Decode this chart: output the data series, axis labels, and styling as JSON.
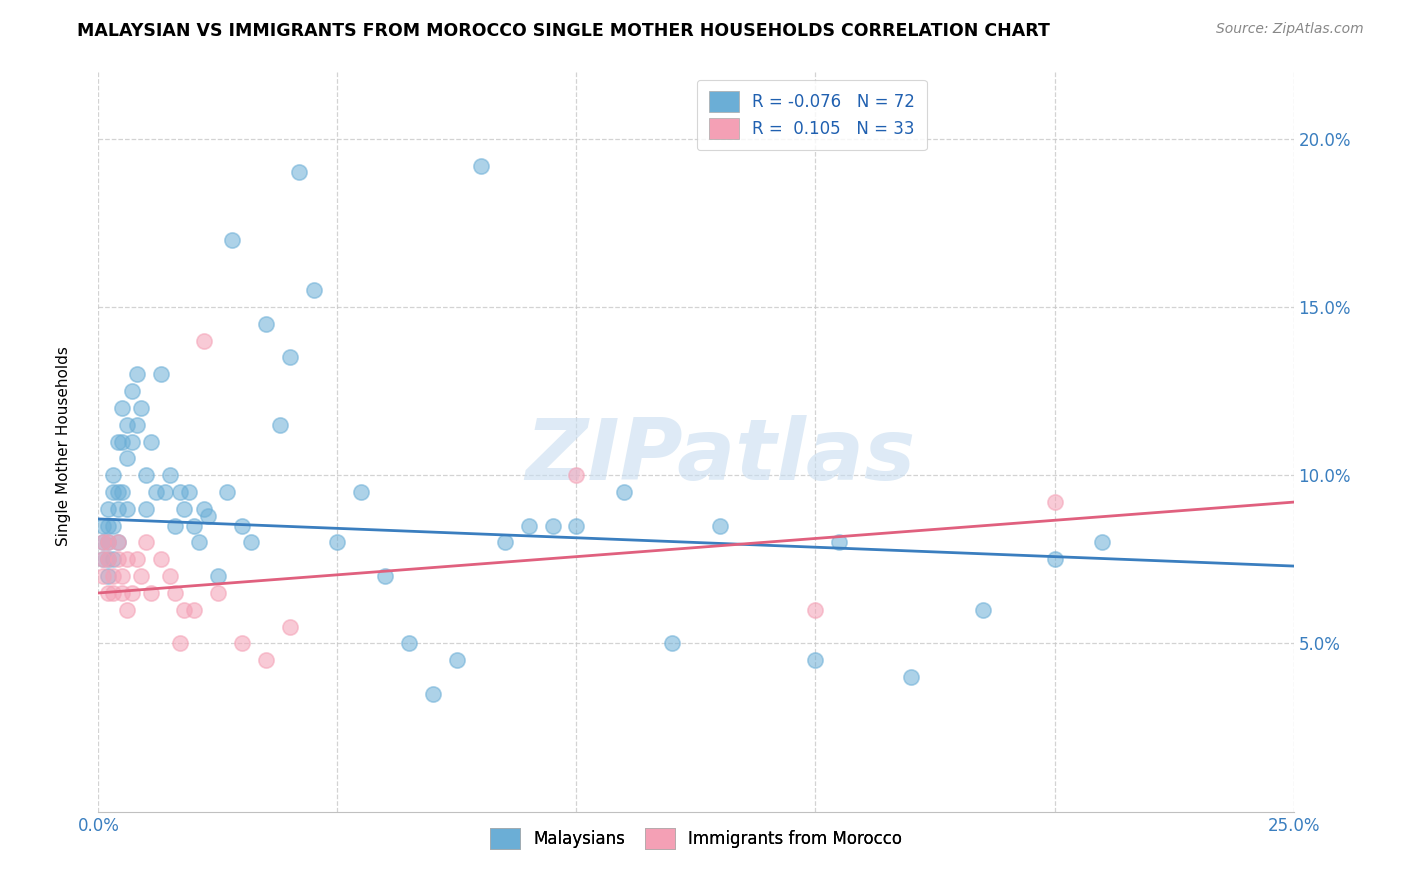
{
  "title": "MALAYSIAN VS IMMIGRANTS FROM MOROCCO SINGLE MOTHER HOUSEHOLDS CORRELATION CHART",
  "source": "Source: ZipAtlas.com",
  "ylabel": "Single Mother Households",
  "xlim": [
    0.0,
    0.25
  ],
  "ylim": [
    0.0,
    0.22
  ],
  "yticks": [
    0.05,
    0.1,
    0.15,
    0.2
  ],
  "ytick_labels": [
    "5.0%",
    "10.0%",
    "15.0%",
    "20.0%"
  ],
  "xticks": [
    0.0,
    0.05,
    0.1,
    0.15,
    0.2,
    0.25
  ],
  "xtick_labels": [
    "0.0%",
    "",
    "",
    "",
    "",
    "25.0%"
  ],
  "legend_label1": "Malaysians",
  "legend_label2": "Immigrants from Morocco",
  "R1": "-0.076",
  "N1": "72",
  "R2": "0.105",
  "N2": "33",
  "color1": "#6baed6",
  "color2": "#f4a0b5",
  "line_color1": "#3a7ebf",
  "line_color2": "#e0607e",
  "watermark": "ZIPatlas",
  "mal_line_x": [
    0.0,
    0.25
  ],
  "mal_line_y": [
    0.087,
    0.073
  ],
  "mor_line_x": [
    0.0,
    0.25
  ],
  "mor_line_y": [
    0.065,
    0.092
  ],
  "malaysians_x": [
    0.001,
    0.001,
    0.001,
    0.002,
    0.002,
    0.002,
    0.002,
    0.002,
    0.003,
    0.003,
    0.003,
    0.003,
    0.004,
    0.004,
    0.004,
    0.004,
    0.005,
    0.005,
    0.005,
    0.006,
    0.006,
    0.006,
    0.007,
    0.007,
    0.008,
    0.008,
    0.009,
    0.01,
    0.01,
    0.011,
    0.012,
    0.013,
    0.014,
    0.015,
    0.016,
    0.017,
    0.018,
    0.019,
    0.02,
    0.021,
    0.022,
    0.023,
    0.025,
    0.027,
    0.028,
    0.03,
    0.032,
    0.035,
    0.038,
    0.04,
    0.042,
    0.045,
    0.05,
    0.055,
    0.06,
    0.065,
    0.07,
    0.075,
    0.08,
    0.085,
    0.09,
    0.095,
    0.1,
    0.11,
    0.12,
    0.13,
    0.15,
    0.155,
    0.17,
    0.185,
    0.2,
    0.21
  ],
  "malaysians_y": [
    0.085,
    0.075,
    0.08,
    0.09,
    0.08,
    0.07,
    0.075,
    0.085,
    0.095,
    0.1,
    0.085,
    0.075,
    0.11,
    0.095,
    0.08,
    0.09,
    0.12,
    0.11,
    0.095,
    0.115,
    0.105,
    0.09,
    0.125,
    0.11,
    0.13,
    0.115,
    0.12,
    0.1,
    0.09,
    0.11,
    0.095,
    0.13,
    0.095,
    0.1,
    0.085,
    0.095,
    0.09,
    0.095,
    0.085,
    0.08,
    0.09,
    0.088,
    0.07,
    0.095,
    0.17,
    0.085,
    0.08,
    0.145,
    0.115,
    0.135,
    0.19,
    0.155,
    0.08,
    0.095,
    0.07,
    0.05,
    0.035,
    0.045,
    0.192,
    0.08,
    0.085,
    0.085,
    0.085,
    0.095,
    0.05,
    0.085,
    0.045,
    0.08,
    0.04,
    0.06,
    0.075,
    0.08
  ],
  "morocco_x": [
    0.001,
    0.001,
    0.001,
    0.002,
    0.002,
    0.002,
    0.003,
    0.003,
    0.004,
    0.004,
    0.005,
    0.005,
    0.006,
    0.006,
    0.007,
    0.008,
    0.009,
    0.01,
    0.011,
    0.013,
    0.015,
    0.016,
    0.017,
    0.018,
    0.02,
    0.022,
    0.025,
    0.03,
    0.035,
    0.04,
    0.1,
    0.15,
    0.2
  ],
  "morocco_y": [
    0.075,
    0.07,
    0.08,
    0.065,
    0.075,
    0.08,
    0.07,
    0.065,
    0.075,
    0.08,
    0.065,
    0.07,
    0.075,
    0.06,
    0.065,
    0.075,
    0.07,
    0.08,
    0.065,
    0.075,
    0.07,
    0.065,
    0.05,
    0.06,
    0.06,
    0.14,
    0.065,
    0.05,
    0.045,
    0.055,
    0.1,
    0.06,
    0.092
  ]
}
